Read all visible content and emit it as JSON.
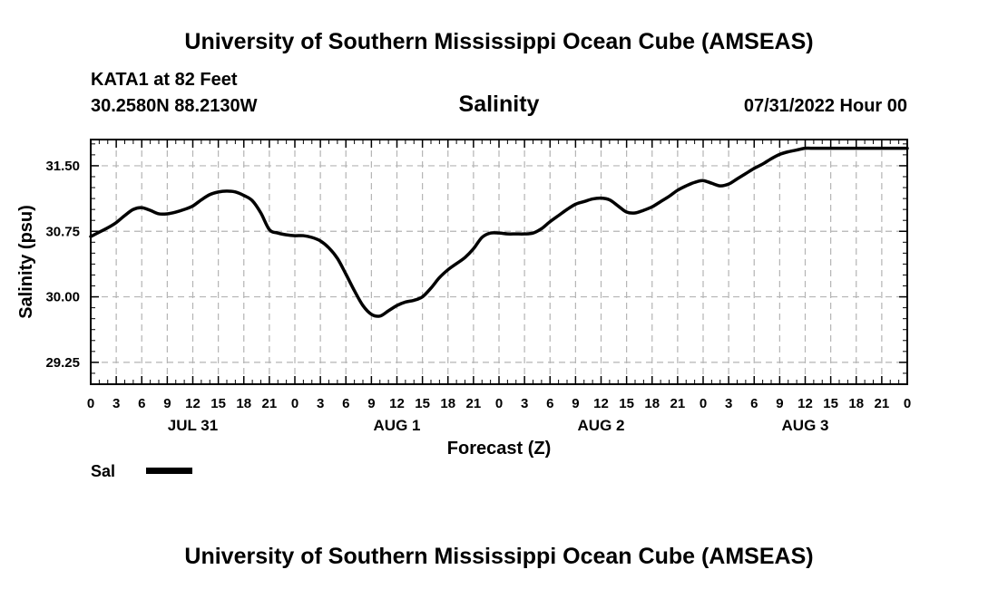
{
  "page": {
    "title_top": "University of Southern Mississippi Ocean Cube (AMSEAS)",
    "title_bottom": "University of Southern Mississippi Ocean Cube (AMSEAS)",
    "station": "KATA1 at 82 Feet",
    "coords": "30.2580N  88.2130W",
    "chart_title": "Salinity",
    "run_time": "07/31/2022 Hour 00"
  },
  "legend": {
    "label": "Sal",
    "color": "#000000"
  },
  "chart_data": {
    "type": "line",
    "title": "Salinity",
    "xlabel": "Forecast (Z)",
    "ylabel": "Salinity (psu)",
    "ylim": [
      29.0,
      31.8
    ],
    "xlim": [
      0,
      96
    ],
    "yticks": [
      29.25,
      30.0,
      30.75,
      31.5
    ],
    "ytick_labels": [
      "29.25",
      "30.00",
      "30.75",
      "31.50"
    ],
    "xticks": [
      0,
      3,
      6,
      9,
      12,
      15,
      18,
      21,
      24,
      27,
      30,
      33,
      36,
      39,
      42,
      45,
      48,
      51,
      54,
      57,
      60,
      63,
      66,
      69,
      72,
      75,
      78,
      81,
      84,
      87,
      90,
      93,
      96
    ],
    "xtick_labels": [
      "0",
      "3",
      "6",
      "9",
      "12",
      "15",
      "18",
      "21",
      "0",
      "3",
      "6",
      "9",
      "12",
      "15",
      "18",
      "21",
      "0",
      "3",
      "6",
      "9",
      "12",
      "15",
      "18",
      "21",
      "0",
      "3",
      "6",
      "9",
      "12",
      "15",
      "18",
      "21",
      "0"
    ],
    "day_labels": [
      {
        "label": "JUL 31",
        "hour": 12
      },
      {
        "label": "AUG 1",
        "hour": 36
      },
      {
        "label": "AUG 2",
        "hour": 60
      },
      {
        "label": "AUG 3",
        "hour": 84
      }
    ],
    "grid": true,
    "series": [
      {
        "name": "Sal",
        "x": [
          0,
          1,
          2,
          3,
          4,
          5,
          6,
          7,
          8,
          9,
          10,
          11,
          12,
          13,
          14,
          15,
          16,
          17,
          18,
          19,
          20,
          21,
          22,
          23,
          24,
          25,
          26,
          27,
          28,
          29,
          30,
          31,
          32,
          33,
          34,
          35,
          36,
          37,
          38,
          39,
          40,
          41,
          42,
          43,
          44,
          45,
          46,
          47,
          48,
          49,
          50,
          51,
          52,
          53,
          54,
          55,
          56,
          57,
          58,
          59,
          60,
          61,
          62,
          63,
          64,
          65,
          66,
          67,
          68,
          69,
          70,
          71,
          72,
          73,
          74,
          75,
          76,
          77,
          78,
          79,
          80,
          81,
          82,
          83,
          84,
          85,
          86,
          87,
          88,
          89,
          90,
          91,
          92,
          93,
          94,
          95,
          96
        ],
        "values": [
          30.69,
          30.74,
          30.79,
          30.85,
          30.93,
          31.0,
          31.02,
          30.99,
          30.95,
          30.95,
          30.97,
          31.0,
          31.04,
          31.11,
          31.17,
          31.2,
          31.21,
          31.2,
          31.16,
          31.1,
          30.96,
          30.77,
          30.73,
          30.71,
          30.7,
          30.7,
          30.68,
          30.64,
          30.56,
          30.44,
          30.26,
          30.07,
          29.9,
          29.8,
          29.78,
          29.84,
          29.9,
          29.94,
          29.96,
          30.0,
          30.1,
          30.22,
          30.31,
          30.38,
          30.45,
          30.55,
          30.68,
          30.73,
          30.73,
          30.72,
          30.72,
          30.72,
          30.73,
          30.78,
          30.86,
          30.93,
          31.0,
          31.06,
          31.09,
          31.12,
          31.13,
          31.11,
          31.04,
          30.97,
          30.96,
          30.99,
          31.03,
          31.09,
          31.15,
          31.22,
          31.27,
          31.31,
          31.33,
          31.3,
          31.27,
          31.29,
          31.35,
          31.41,
          31.47,
          31.52,
          31.58,
          31.63,
          31.66,
          31.68,
          31.7,
          31.7,
          31.7,
          31.7,
          31.7,
          31.7,
          31.7,
          31.7,
          31.7,
          31.7,
          31.7,
          31.7,
          31.7
        ]
      }
    ]
  }
}
